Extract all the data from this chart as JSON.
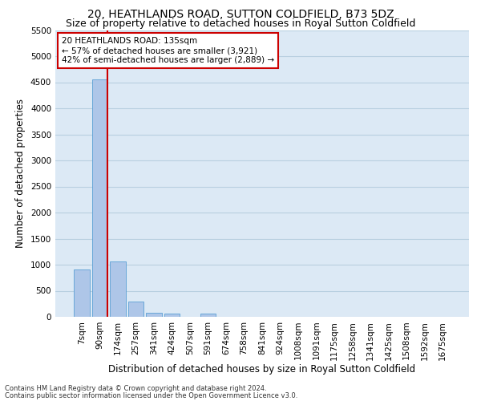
{
  "title": "20, HEATHLANDS ROAD, SUTTON COLDFIELD, B73 5DZ",
  "subtitle": "Size of property relative to detached houses in Royal Sutton Coldfield",
  "xlabel": "Distribution of detached houses by size in Royal Sutton Coldfield",
  "ylabel": "Number of detached properties",
  "footnote1": "Contains HM Land Registry data © Crown copyright and database right 2024.",
  "footnote2": "Contains public sector information licensed under the Open Government Licence v3.0.",
  "bar_labels": [
    "7sqm",
    "90sqm",
    "174sqm",
    "257sqm",
    "341sqm",
    "424sqm",
    "507sqm",
    "591sqm",
    "674sqm",
    "758sqm",
    "841sqm",
    "924sqm",
    "1008sqm",
    "1091sqm",
    "1175sqm",
    "1258sqm",
    "1341sqm",
    "1425sqm",
    "1508sqm",
    "1592sqm",
    "1675sqm"
  ],
  "bar_values": [
    910,
    4560,
    1060,
    300,
    75,
    60,
    0,
    60,
    0,
    0,
    0,
    0,
    0,
    0,
    0,
    0,
    0,
    0,
    0,
    0,
    0
  ],
  "bar_color": "#aec6e8",
  "bar_edge_color": "#5a9fd4",
  "property_bin_index": 1,
  "vline_color": "#cc0000",
  "annotation_text": "20 HEATHLANDS ROAD: 135sqm\n← 57% of detached houses are smaller (3,921)\n42% of semi-detached houses are larger (2,889) →",
  "annotation_box_edgecolor": "#cc0000",
  "ylim": [
    0,
    5500
  ],
  "yticks": [
    0,
    500,
    1000,
    1500,
    2000,
    2500,
    3000,
    3500,
    4000,
    4500,
    5000,
    5500
  ],
  "background_color": "#ffffff",
  "axes_bg_color": "#dce9f5",
  "grid_color": "#b8cfe0",
  "title_fontsize": 10,
  "subtitle_fontsize": 9,
  "axis_label_fontsize": 8.5,
  "tick_fontsize": 7.5,
  "annot_fontsize": 7.5
}
